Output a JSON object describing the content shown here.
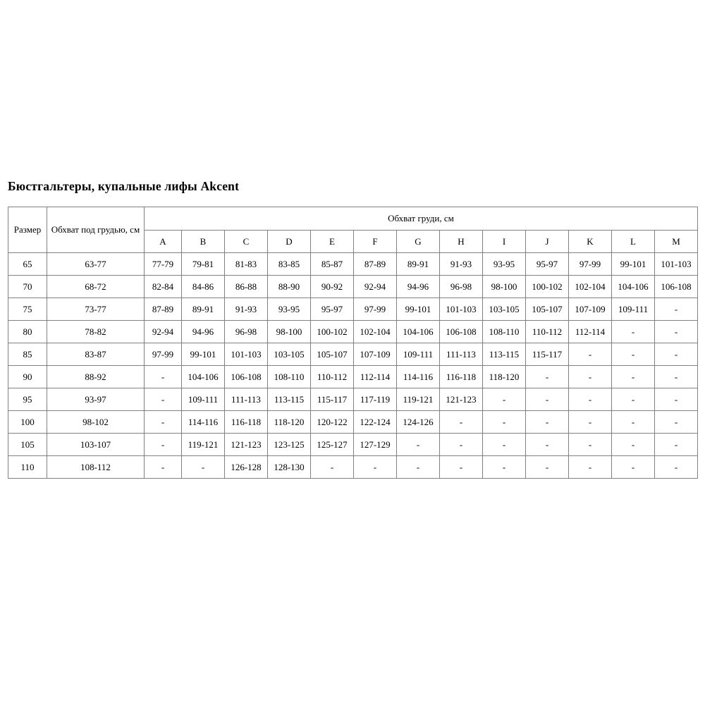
{
  "page": {
    "title": "Бюстгальтеры, купальные лифы Akcent"
  },
  "table": {
    "header": {
      "size_label": "Размер",
      "underbust_label": "Обхват под грудью, см",
      "bust_label": "Обхват груди, см",
      "cup_columns": [
        "A",
        "B",
        "C",
        "D",
        "E",
        "F",
        "G",
        "H",
        "I",
        "J",
        "K",
        "L",
        "M"
      ]
    },
    "rows": [
      {
        "size": "65",
        "underbust": "63-77",
        "cups": [
          "77-79",
          "79-81",
          "81-83",
          "83-85",
          "85-87",
          "87-89",
          "89-91",
          "91-93",
          "93-95",
          "95-97",
          "97-99",
          "99-101",
          "101-103"
        ]
      },
      {
        "size": "70",
        "underbust": "68-72",
        "cups": [
          "82-84",
          "84-86",
          "86-88",
          "88-90",
          "90-92",
          "92-94",
          "94-96",
          "96-98",
          "98-100",
          "100-102",
          "102-104",
          "104-106",
          "106-108"
        ]
      },
      {
        "size": "75",
        "underbust": "73-77",
        "cups": [
          "87-89",
          "89-91",
          "91-93",
          "93-95",
          "95-97",
          "97-99",
          "99-101",
          "101-103",
          "103-105",
          "105-107",
          "107-109",
          "109-111",
          "-"
        ]
      },
      {
        "size": "80",
        "underbust": "78-82",
        "cups": [
          "92-94",
          "94-96",
          "96-98",
          "98-100",
          "100-102",
          "102-104",
          "104-106",
          "106-108",
          "108-110",
          "110-112",
          "112-114",
          "-",
          "-"
        ]
      },
      {
        "size": "85",
        "underbust": "83-87",
        "cups": [
          "97-99",
          "99-101",
          "101-103",
          "103-105",
          "105-107",
          "107-109",
          "109-111",
          "111-113",
          "113-115",
          "115-117",
          "-",
          "-",
          "-"
        ]
      },
      {
        "size": "90",
        "underbust": "88-92",
        "cups": [
          "-",
          "104-106",
          "106-108",
          "108-110",
          "110-112",
          "112-114",
          "114-116",
          "116-118",
          "118-120",
          "-",
          "-",
          "-",
          "-"
        ]
      },
      {
        "size": "95",
        "underbust": "93-97",
        "cups": [
          "-",
          "109-111",
          "111-113",
          "113-115",
          "115-117",
          "117-119",
          "119-121",
          "121-123",
          "-",
          "-",
          "-",
          "-",
          "-"
        ]
      },
      {
        "size": "100",
        "underbust": "98-102",
        "cups": [
          "-",
          "114-116",
          "116-118",
          "118-120",
          "120-122",
          "122-124",
          "124-126",
          "-",
          "-",
          "-",
          "-",
          "-",
          "-"
        ]
      },
      {
        "size": "105",
        "underbust": "103-107",
        "cups": [
          "-",
          "119-121",
          "121-123",
          "123-125",
          "125-127",
          "127-129",
          "-",
          "-",
          "-",
          "-",
          "-",
          "-",
          "-"
        ]
      },
      {
        "size": "110",
        "underbust": "108-112",
        "cups": [
          "-",
          "-",
          "126-128",
          "128-130",
          "-",
          "-",
          "-",
          "-",
          "-",
          "-",
          "-",
          "-",
          "-"
        ]
      }
    ]
  }
}
